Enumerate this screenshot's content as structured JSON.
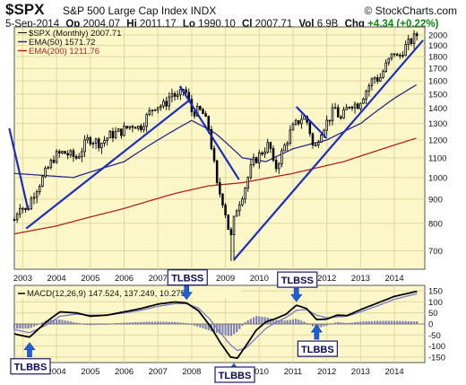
{
  "header": {
    "symbol": "$SPX",
    "description": "S&P 500 Large Cap Index",
    "exchange": "INDX",
    "brand": "© StockCharts.com",
    "date": "5-Sep-2014",
    "open_label": "Op",
    "open": "2004.07",
    "high_label": "Hi",
    "high": "2011.17",
    "low_label": "Lo",
    "low": "1990.10",
    "close_label": "Cl",
    "close": "2007.71",
    "vol_label": "Vol",
    "vol": "6.9B",
    "chg_label": "Chg",
    "chg": "+4.34 (+0.22%)"
  },
  "colors": {
    "panel_bg": "#fbf7c8",
    "grid": "#dfd7a0",
    "candle": "#000000",
    "ema50": "#2a2a8a",
    "ema200": "#b22222",
    "trendline": "#1c2dbd",
    "macd": "#000000",
    "signal": "#7a78c8",
    "hist": "#8080c0",
    "arrow": "#1e60d8"
  },
  "chart_data": [
    {
      "type": "candlestick",
      "title": "$SPX (Monthly) 2007.71",
      "legend": [
        {
          "name": "$SPX (Monthly) 2007.71",
          "color": "#000000"
        },
        {
          "name": "EMA(50) 1571.72",
          "color": "#2a2a8a"
        },
        {
          "name": "EMA(200) 1211.76",
          "color": "#b22222"
        }
      ],
      "legend_position": "top-left",
      "yscale": "log",
      "ylim": [
        640,
        2080
      ],
      "xlim": [
        2002.75,
        2014.9
      ],
      "y_ticks": [
        700,
        800,
        900,
        1000,
        1100,
        1200,
        1300,
        1400,
        1500,
        1600,
        1700,
        1800,
        1900,
        2000
      ],
      "x_ticks": [
        "2003",
        "2004",
        "2005",
        "2006",
        "2007",
        "2008",
        "2009",
        "2010",
        "2011",
        "2012",
        "2013",
        "2014"
      ],
      "grid": true,
      "price_anchors": [
        [
          2002.75,
          815
        ],
        [
          2002.92,
          880
        ],
        [
          2003.1,
          845
        ],
        [
          2003.3,
          920
        ],
        [
          2003.6,
          1000
        ],
        [
          2003.95,
          1110
        ],
        [
          2004.2,
          1130
        ],
        [
          2004.6,
          1100
        ],
        [
          2004.95,
          1210
        ],
        [
          2005.3,
          1180
        ],
        [
          2005.6,
          1230
        ],
        [
          2005.9,
          1250
        ],
        [
          2006.3,
          1300
        ],
        [
          2006.45,
          1270
        ],
        [
          2006.9,
          1420
        ],
        [
          2007.2,
          1420
        ],
        [
          2007.4,
          1510
        ],
        [
          2007.6,
          1470
        ],
        [
          2007.78,
          1550
        ],
        [
          2008.0,
          1380
        ],
        [
          2008.3,
          1380
        ],
        [
          2008.5,
          1270
        ],
        [
          2008.75,
          960
        ],
        [
          2008.95,
          880
        ],
        [
          2009.15,
          735
        ],
        [
          2009.3,
          850
        ],
        [
          2009.55,
          940
        ],
        [
          2009.8,
          1070
        ],
        [
          2010.0,
          1115
        ],
        [
          2010.3,
          1180
        ],
        [
          2010.45,
          1030
        ],
        [
          2010.7,
          1140
        ],
        [
          2010.95,
          1260
        ],
        [
          2011.3,
          1350
        ],
        [
          2011.45,
          1300
        ],
        [
          2011.62,
          1130
        ],
        [
          2011.8,
          1250
        ],
        [
          2012.0,
          1310
        ],
        [
          2012.25,
          1400
        ],
        [
          2012.4,
          1320
        ],
        [
          2012.7,
          1440
        ],
        [
          2012.9,
          1420
        ],
        [
          2013.1,
          1500
        ],
        [
          2013.4,
          1630
        ],
        [
          2013.55,
          1610
        ],
        [
          2013.8,
          1750
        ],
        [
          2014.0,
          1840
        ],
        [
          2014.1,
          1780
        ],
        [
          2014.3,
          1880
        ],
        [
          2014.55,
          1960
        ],
        [
          2014.67,
          2003
        ]
      ],
      "ema50_points": [
        [
          2002.75,
          1020
        ],
        [
          2004.5,
          1000
        ],
        [
          2006.0,
          1080
        ],
        [
          2007.0,
          1200
        ],
        [
          2008.0,
          1320
        ],
        [
          2008.7,
          1240
        ],
        [
          2009.5,
          1100
        ],
        [
          2010.2,
          1080
        ],
        [
          2011.0,
          1150
        ],
        [
          2012.0,
          1200
        ],
        [
          2013.0,
          1300
        ],
        [
          2014.0,
          1470
        ],
        [
          2014.67,
          1572
        ]
      ],
      "ema200_points": [
        [
          2002.75,
          760
        ],
        [
          2004.0,
          790
        ],
        [
          2006.0,
          860
        ],
        [
          2007.5,
          925
        ],
        [
          2008.5,
          960
        ],
        [
          2009.5,
          975
        ],
        [
          2011.0,
          1020
        ],
        [
          2012.5,
          1080
        ],
        [
          2013.5,
          1140
        ],
        [
          2014.67,
          1212
        ]
      ],
      "trendlines": [
        [
          [
            2002.6,
            1270
          ],
          [
            2003.15,
            860
          ]
        ],
        [
          [
            2003.1,
            780
          ],
          [
            2007.95,
            1460
          ]
        ],
        [
          [
            2007.65,
            1560
          ],
          [
            2009.4,
            990
          ]
        ],
        [
          [
            2009.25,
            670
          ],
          [
            2014.85,
            1950
          ]
        ],
        [
          [
            2011.1,
            1410
          ],
          [
            2012.0,
            1210
          ]
        ]
      ],
      "min_low": {
        "x": 2009.2,
        "value": 666
      }
    },
    {
      "type": "line",
      "title": "MACD(12,26,9) 147.524, 137.249, 10.275",
      "series": [
        {
          "name": "MACD 147.524",
          "points": [
            [
              2002.75,
              -45
            ],
            [
              2003.2,
              -60
            ],
            [
              2003.7,
              10
            ],
            [
              2004.1,
              55
            ],
            [
              2004.6,
              50
            ],
            [
              2005.0,
              35
            ],
            [
              2005.5,
              40
            ],
            [
              2006.0,
              55
            ],
            [
              2006.5,
              70
            ],
            [
              2007.0,
              90
            ],
            [
              2007.5,
              100
            ],
            [
              2007.85,
              95
            ],
            [
              2008.2,
              60
            ],
            [
              2008.55,
              -10
            ],
            [
              2008.85,
              -85
            ],
            [
              2009.15,
              -150
            ],
            [
              2009.35,
              -155
            ],
            [
              2009.6,
              -100
            ],
            [
              2009.9,
              -30
            ],
            [
              2010.2,
              10
            ],
            [
              2010.5,
              25
            ],
            [
              2010.8,
              45
            ],
            [
              2011.1,
              85
            ],
            [
              2011.4,
              70
            ],
            [
              2011.7,
              20
            ],
            [
              2012.0,
              22
            ],
            [
              2012.3,
              40
            ],
            [
              2012.6,
              38
            ],
            [
              2013.0,
              65
            ],
            [
              2013.5,
              95
            ],
            [
              2014.0,
              125
            ],
            [
              2014.67,
              148
            ]
          ]
        },
        {
          "name": "Signal 137.249",
          "points": [
            [
              2002.75,
              -25
            ],
            [
              2003.2,
              -40
            ],
            [
              2003.7,
              -5
            ],
            [
              2004.1,
              35
            ],
            [
              2004.6,
              45
            ],
            [
              2005.0,
              40
            ],
            [
              2005.5,
              40
            ],
            [
              2006.0,
              50
            ],
            [
              2006.5,
              62
            ],
            [
              2007.0,
              80
            ],
            [
              2007.5,
              92
            ],
            [
              2007.85,
              92
            ],
            [
              2008.2,
              72
            ],
            [
              2008.55,
              20
            ],
            [
              2008.85,
              -40
            ],
            [
              2009.15,
              -95
            ],
            [
              2009.35,
              -120
            ],
            [
              2009.6,
              -110
            ],
            [
              2009.9,
              -65
            ],
            [
              2010.2,
              -20
            ],
            [
              2010.5,
              8
            ],
            [
              2010.8,
              30
            ],
            [
              2011.1,
              62
            ],
            [
              2011.4,
              65
            ],
            [
              2011.7,
              40
            ],
            [
              2012.0,
              28
            ],
            [
              2012.3,
              32
            ],
            [
              2012.6,
              35
            ],
            [
              2013.0,
              55
            ],
            [
              2013.5,
              82
            ],
            [
              2014.0,
              112
            ],
            [
              2014.67,
              137
            ]
          ]
        },
        {
          "name": "Histogram 10.275",
          "type": "bar"
        }
      ],
      "ylim": [
        -175,
        175
      ],
      "y_ticks": [
        -150,
        -100,
        -50,
        0,
        50,
        100,
        150
      ],
      "x_ticks": [
        "2003",
        "2004",
        "2005",
        "2006",
        "2007",
        "2008",
        "2009",
        "2010",
        "2011",
        "2012",
        "2013",
        "2014"
      ]
    }
  ],
  "annotations": [
    {
      "text": "TLBBS",
      "x": 2003.2,
      "value": -60,
      "label_side": "below"
    },
    {
      "text": "TLBSS",
      "x": 2007.85,
      "value": 95,
      "label_side": "above"
    },
    {
      "text": "TLBBS",
      "x": 2009.25,
      "value": -155,
      "label_side": "below"
    },
    {
      "text": "TLBSS",
      "x": 2011.1,
      "value": 85,
      "label_side": "above"
    },
    {
      "text": "TLBBS",
      "x": 2011.7,
      "value": 20,
      "label_side": "below"
    }
  ]
}
